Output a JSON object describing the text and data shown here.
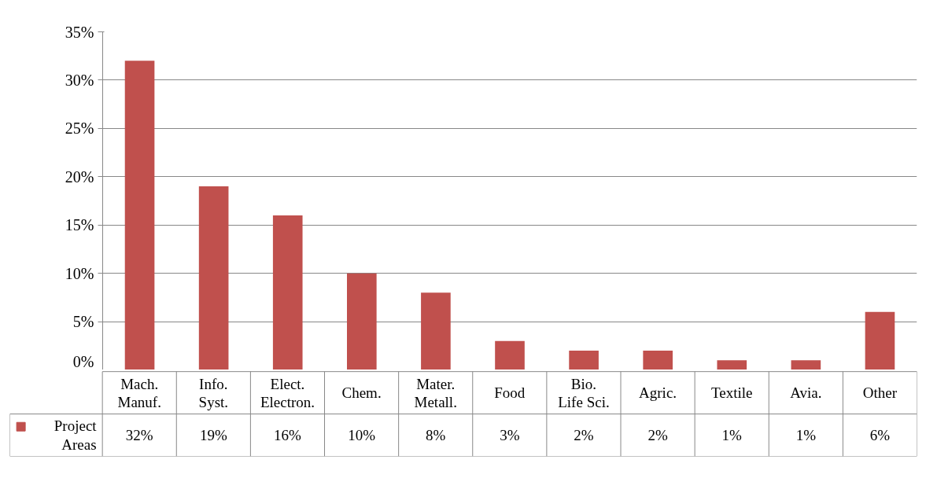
{
  "chart_data": {
    "type": "bar",
    "categories": [
      "Mach.\nManuf.",
      "Info.\nSyst.",
      "Elect.\nElectron.",
      "Chem.",
      "Mater.\nMetall.",
      "Food",
      "Bio.\nLife Sci.",
      "Agric.",
      "Textile",
      "Avia.",
      "Other"
    ],
    "series": [
      {
        "name": "Project Areas",
        "color": "#c0504d",
        "values": [
          32,
          19,
          16,
          10,
          8,
          3,
          2,
          2,
          1,
          1,
          6
        ],
        "value_labels": [
          "32%",
          "19%",
          "16%",
          "10%",
          "8%",
          "3%",
          "2%",
          "2%",
          "1%",
          "1%",
          "6%"
        ]
      }
    ],
    "ylim": [
      0,
      35
    ],
    "yticks": [
      {
        "value": 0,
        "label": "0%"
      },
      {
        "value": 5,
        "label": "5%"
      },
      {
        "value": 10,
        "label": "10%"
      },
      {
        "value": 15,
        "label": "15%"
      },
      {
        "value": 20,
        "label": "20%"
      },
      {
        "value": 25,
        "label": "25%"
      },
      {
        "value": 30,
        "label": "30%"
      },
      {
        "value": 35,
        "label": "35%"
      }
    ],
    "grid": "y",
    "legend": "bottom left"
  }
}
